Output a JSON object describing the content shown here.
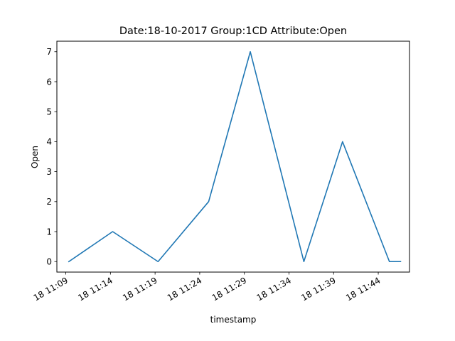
{
  "chart_data": {
    "type": "line",
    "title": "Date:18-10-2017  Group:1CD Attribute:Open",
    "xlabel": "timestamp",
    "ylabel": "Open",
    "x_tick_labels": [
      "18 11:09",
      "18 11:14",
      "18 11:19",
      "18 11:24",
      "18 11:29",
      "18 11:34",
      "18 11:39",
      "18 11:44"
    ],
    "y_tick_labels": [
      "0",
      "1",
      "2",
      "3",
      "4",
      "5",
      "6",
      "7"
    ],
    "xlim": [
      "2017-10-18 11:08:00",
      "2017-10-18 11:47:30"
    ],
    "ylim": [
      -0.35,
      7.35
    ],
    "grid": false,
    "series": [
      {
        "color": "#1f77b4",
        "x": [
          "2017-10-18 11:09:20",
          "2017-10-18 11:14:15",
          "2017-10-18 11:19:20",
          "2017-10-18 11:25:00",
          "2017-10-18 11:29:40",
          "2017-10-18 11:35:40",
          "2017-10-18 11:40:00",
          "2017-10-18 11:45:15",
          "2017-10-18 11:46:30"
        ],
        "y": [
          0,
          1,
          0,
          2,
          7,
          0,
          4,
          0,
          0
        ]
      }
    ]
  }
}
